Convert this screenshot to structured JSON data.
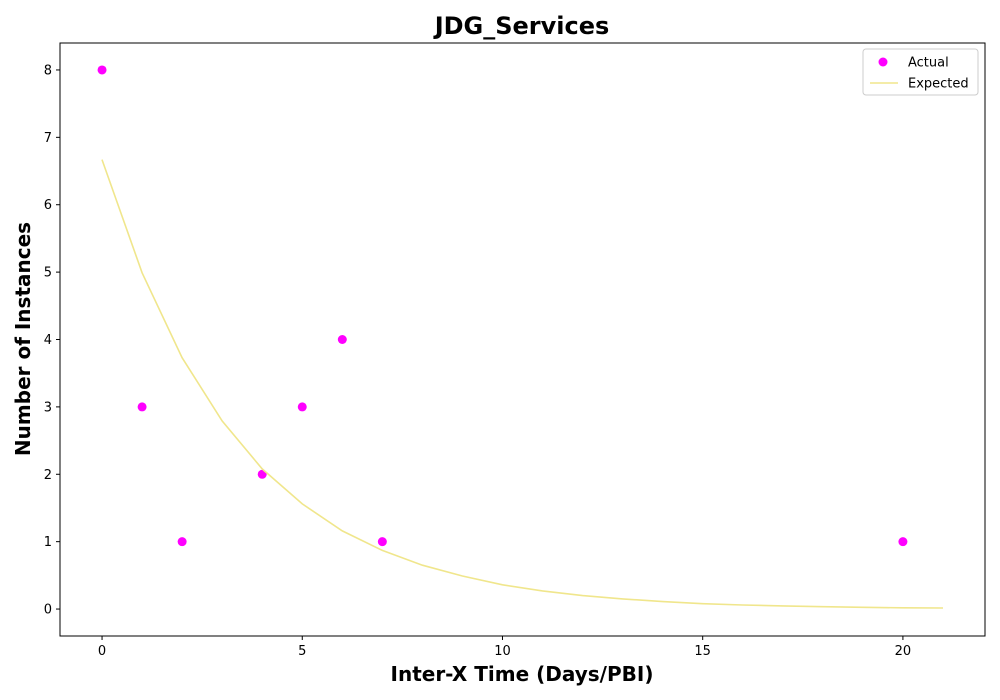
{
  "chart_data": {
    "type": "scatter",
    "title": "JDG_Services",
    "xlabel": "Inter-X Time (Days/PBI)",
    "ylabel": "Number of Instances",
    "xlim": [
      -1.05,
      22.05
    ],
    "ylim": [
      -0.4,
      8.4
    ],
    "x_ticks": [
      0,
      5,
      10,
      15,
      20
    ],
    "y_ticks": [
      0,
      1,
      2,
      3,
      4,
      5,
      6,
      7,
      8
    ],
    "grid": false,
    "legend_position": "upper right",
    "series": [
      {
        "name": "Actual",
        "kind": "scatter",
        "color": "#ff00ff",
        "points": [
          {
            "x": 0,
            "y": 8
          },
          {
            "x": 1,
            "y": 3
          },
          {
            "x": 2,
            "y": 1
          },
          {
            "x": 4,
            "y": 2
          },
          {
            "x": 5,
            "y": 3
          },
          {
            "x": 6,
            "y": 4
          },
          {
            "x": 7,
            "y": 1
          },
          {
            "x": 20,
            "y": 1
          }
        ]
      },
      {
        "name": "Expected",
        "kind": "line",
        "color": "#f0e68c",
        "x": [
          0,
          1,
          2,
          3,
          4,
          5,
          6,
          7,
          8,
          9,
          10,
          11,
          12,
          13,
          14,
          15,
          16,
          17,
          18,
          19,
          20,
          21
        ],
        "y": [
          6.67,
          4.99,
          3.73,
          2.79,
          2.08,
          1.56,
          1.16,
          0.87,
          0.65,
          0.49,
          0.36,
          0.27,
          0.2,
          0.15,
          0.11,
          0.08,
          0.06,
          0.047,
          0.035,
          0.026,
          0.019,
          0.015
        ]
      }
    ]
  }
}
